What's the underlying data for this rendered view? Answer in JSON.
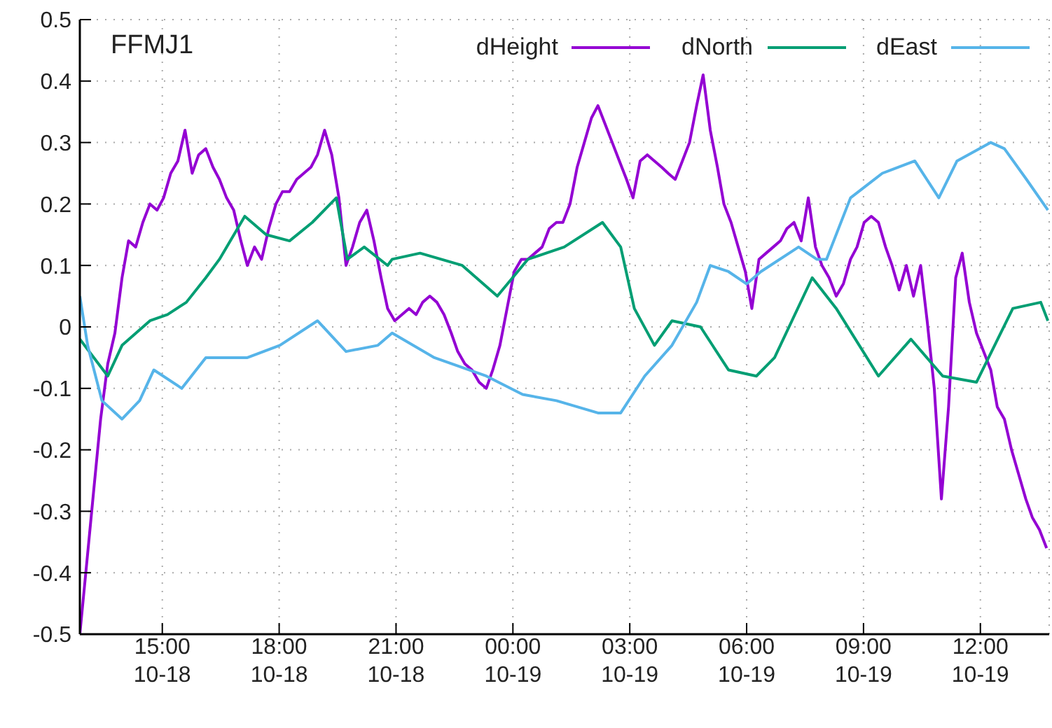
{
  "chart_data": {
    "type": "line",
    "title": "FFMJ1",
    "legend": "top right",
    "grid": true,
    "line_style": "solid",
    "marker": "none",
    "xlim": [
      "--10-18T12:53",
      "--10-19T13:46"
    ],
    "xticks": [
      {
        "value": "--10-18T15:00",
        "label": "15:00\n10-18"
      },
      {
        "value": "--10-18T18:00",
        "label": "18:00\n10-18"
      },
      {
        "value": "--10-18T21:00",
        "label": "21:00\n10-18"
      },
      {
        "value": "--10-19T00:00",
        "label": "00:00\n10-19"
      },
      {
        "value": "--10-19T03:00",
        "label": "03:00\n10-19"
      },
      {
        "value": "--10-19T06:00",
        "label": "06:00\n10-19"
      },
      {
        "value": "--10-19T09:00",
        "label": "09:00\n10-19"
      },
      {
        "value": "--10-19T12:00",
        "label": "12:00\n10-19"
      }
    ],
    "ylim": [
      -0.5,
      0.5
    ],
    "yticks": [
      -0.5,
      -0.4,
      -0.3,
      -0.2,
      -0.1,
      0,
      0.1,
      0.2,
      0.3,
      0.4,
      0.5
    ],
    "x": [
      "--10-18T12:53",
      "--10-18T13:04",
      "--10-18T13:14",
      "--10-18T13:25",
      "--10-18T13:36",
      "--10-18T13:47",
      "--10-18T13:58",
      "--10-18T14:08",
      "--10-18T14:19",
      "--10-18T14:30",
      "--10-18T14:41",
      "--10-18T14:52",
      "--10-18T15:02",
      "--10-18T15:13",
      "--10-18T15:24",
      "--10-18T15:35",
      "--10-18T15:46",
      "--10-18T15:56",
      "--10-18T16:07",
      "--10-18T16:18",
      "--10-18T16:28",
      "--10-18T16:39",
      "--10-18T16:50",
      "--10-18T17:01",
      "--10-18T17:11",
      "--10-18T17:22",
      "--10-18T17:33",
      "--10-18T17:44",
      "--10-18T17:55",
      "--10-18T18:05",
      "--10-18T18:16",
      "--10-18T18:27",
      "--10-18T18:38",
      "--10-18T18:49",
      "--10-18T18:59",
      "--10-18T19:10",
      "--10-18T19:21",
      "--10-18T19:32",
      "--10-18T19:43",
      "--10-18T19:53",
      "--10-18T20:04",
      "--10-18T20:15",
      "--10-18T20:26",
      "--10-18T20:37",
      "--10-18T20:47",
      "--10-18T20:58",
      "--10-18T21:09",
      "--10-18T21:20",
      "--10-18T21:31",
      "--10-18T21:41",
      "--10-18T21:52",
      "--10-18T22:03",
      "--10-18T22:14",
      "--10-18T22:25",
      "--10-18T22:35",
      "--10-18T22:46",
      "--10-18T22:57",
      "--10-18T23:08",
      "--10-18T23:19",
      "--10-18T23:29",
      "--10-18T23:40",
      "--10-18T23:51",
      "--10-19T00:02",
      "--10-19T00:13",
      "--10-19T00:23",
      "--10-19T00:34",
      "--10-19T00:45",
      "--10-19T00:56",
      "--10-19T01:07",
      "--10-19T01:17",
      "--10-19T01:28",
      "--10-19T01:39",
      "--10-19T01:50",
      "--10-19T02:01",
      "--10-19T02:11",
      "--10-19T02:22",
      "--10-19T02:33",
      "--10-19T02:44",
      "--10-19T02:55",
      "--10-19T03:05",
      "--10-19T03:16",
      "--10-19T03:27",
      "--10-19T03:38",
      "--10-19T03:49",
      "--10-19T03:59",
      "--10-19T04:10",
      "--10-19T04:21",
      "--10-19T04:32",
      "--10-19T04:43",
      "--10-19T04:53",
      "--10-19T05:04",
      "--10-19T05:15",
      "--10-19T05:25",
      "--10-19T05:36",
      "--10-19T05:47",
      "--10-19T05:58",
      "--10-19T06:08",
      "--10-19T06:19",
      "--10-19T06:30",
      "--10-19T06:41",
      "--10-19T06:52",
      "--10-19T07:02",
      "--10-19T07:13",
      "--10-19T07:24",
      "--10-19T07:35",
      "--10-19T07:46",
      "--10-19T07:56",
      "--10-19T08:07",
      "--10-19T08:18",
      "--10-19T08:29",
      "--10-19T08:40",
      "--10-19T08:50",
      "--10-19T09:01",
      "--10-19T09:12",
      "--10-19T09:23",
      "--10-19T09:34",
      "--10-19T09:44",
      "--10-19T09:55",
      "--10-19T10:06",
      "--10-19T10:17",
      "--10-19T10:28",
      "--10-19T10:38",
      "--10-19T10:49",
      "--10-19T11:00",
      "--10-19T11:11",
      "--10-19T11:22",
      "--10-19T11:32",
      "--10-19T11:43",
      "--10-19T11:54",
      "--10-19T12:05",
      "--10-19T12:16",
      "--10-19T12:26",
      "--10-19T12:37",
      "--10-19T12:48",
      "--10-19T12:59",
      "--10-19T13:10",
      "--10-19T13:20",
      "--10-19T13:31",
      "--10-19T13:42"
    ],
    "series": [
      {
        "name": "dHeight",
        "color": "#9400d3",
        "values": [
          -0.5,
          -0.38,
          -0.27,
          -0.15,
          -0.06,
          -0.01,
          0.08,
          0.14,
          0.13,
          0.17,
          0.2,
          0.19,
          0.21,
          0.25,
          0.27,
          0.32,
          0.25,
          0.28,
          0.29,
          0.26,
          0.24,
          0.21,
          0.19,
          0.14,
          0.1,
          0.13,
          0.11,
          0.16,
          0.2,
          0.22,
          0.22,
          0.24,
          0.25,
          0.26,
          0.28,
          0.32,
          0.28,
          0.21,
          0.1,
          0.13,
          0.17,
          0.19,
          0.14,
          0.08,
          0.03,
          0.01,
          0.02,
          0.03,
          0.02,
          0.04,
          0.05,
          0.04,
          0.02,
          -0.01,
          -0.04,
          -0.06,
          -0.07,
          -0.09,
          -0.1,
          -0.07,
          -0.03,
          0.03,
          0.09,
          0.11,
          0.11,
          0.12,
          0.13,
          0.16,
          0.17,
          0.17,
          0.2,
          0.26,
          0.3,
          0.34,
          0.36,
          0.33,
          0.3,
          0.27,
          0.24,
          0.21,
          0.27,
          0.28,
          0.27,
          0.26,
          0.25,
          0.24,
          0.27,
          0.3,
          0.36,
          0.41,
          0.32,
          0.26,
          0.2,
          0.17,
          0.13,
          0.09,
          0.03,
          0.11,
          0.12,
          0.13,
          0.14,
          0.16,
          0.17,
          0.14,
          0.21,
          0.13,
          0.1,
          0.08,
          0.05,
          0.07,
          0.11,
          0.13,
          0.17,
          0.18,
          0.17,
          0.13,
          0.1,
          0.06,
          0.1,
          0.05,
          0.1,
          0.01,
          -0.1,
          -0.28,
          -0.13,
          0.08,
          0.12,
          0.04,
          -0.01,
          -0.04,
          -0.07,
          -0.13,
          -0.15,
          -0.2,
          -0.24,
          -0.28,
          -0.31,
          -0.33,
          -0.36
        ]
      },
      {
        "name": "dNorth",
        "color": "#009e73",
        "x": [
          "--10-18T12:53",
          "--10-18T13:36",
          "--10-18T13:58",
          "--10-18T14:41",
          "--10-18T15:08",
          "--10-18T15:37",
          "--10-18T16:07",
          "--10-18T16:28",
          "--10-18T17:07",
          "--10-18T17:40",
          "--10-18T18:16",
          "--10-18T18:51",
          "--10-18T19:28",
          "--10-18T19:45",
          "--10-18T20:11",
          "--10-18T20:47",
          "--10-18T20:54",
          "--10-18T21:37",
          "--10-18T22:42",
          "--10-18T23:36",
          "--10-19T00:23",
          "--10-19T01:19",
          "--10-19T02:18",
          "--10-19T02:46",
          "--10-19T03:07",
          "--10-19T03:38",
          "--10-19T04:05",
          "--10-19T04:49",
          "--10-19T05:32",
          "--10-19T06:15",
          "--10-19T06:43",
          "--10-19T07:41",
          "--10-19T08:18",
          "--10-19T09:23",
          "--10-19T10:13",
          "--10-19T11:02",
          "--10-19T11:54",
          "--10-19T12:50",
          "--10-19T13:33",
          "--10-19T13:44"
        ],
        "values": [
          -0.02,
          -0.08,
          -0.03,
          0.01,
          0.02,
          0.04,
          0.08,
          0.11,
          0.18,
          0.15,
          0.14,
          0.17,
          0.21,
          0.11,
          0.13,
          0.1,
          0.11,
          0.12,
          0.1,
          0.05,
          0.11,
          0.13,
          0.17,
          0.13,
          0.03,
          -0.03,
          0.01,
          0.0,
          -0.07,
          -0.08,
          -0.05,
          0.08,
          0.03,
          -0.08,
          -0.02,
          -0.08,
          -0.09,
          0.03,
          0.04,
          0.01
        ]
      },
      {
        "name": "dEast",
        "color": "#56b4e9",
        "x": [
          "--10-18T12:53",
          "--10-18T13:05",
          "--10-18T13:27",
          "--10-18T13:58",
          "--10-18T14:25",
          "--10-18T14:47",
          "--10-18T15:30",
          "--10-18T16:07",
          "--10-18T17:11",
          "--10-18T18:01",
          "--10-18T18:59",
          "--10-18T19:43",
          "--10-18T20:32",
          "--10-18T20:54",
          "--10-18T21:59",
          "--10-18T23:19",
          "--10-19T00:15",
          "--10-19T01:07",
          "--10-19T02:11",
          "--10-19T02:46",
          "--10-19T03:23",
          "--10-19T04:05",
          "--10-19T04:43",
          "--10-19T05:04",
          "--10-19T05:32",
          "--10-19T06:00",
          "--10-19T06:22",
          "--10-19T07:20",
          "--10-19T07:48",
          "--10-19T08:03",
          "--10-19T08:40",
          "--10-19T09:29",
          "--10-19T10:19",
          "--10-19T10:56",
          "--10-19T11:24",
          "--10-19T12:16",
          "--10-19T12:37",
          "--10-19T13:11",
          "--10-19T13:44"
        ],
        "values": [
          0.05,
          -0.03,
          -0.12,
          -0.15,
          -0.12,
          -0.07,
          -0.1,
          -0.05,
          -0.05,
          -0.03,
          0.01,
          -0.04,
          -0.03,
          -0.01,
          -0.05,
          -0.08,
          -0.11,
          -0.12,
          -0.14,
          -0.14,
          -0.08,
          -0.03,
          0.04,
          0.1,
          0.09,
          0.07,
          0.09,
          0.13,
          0.11,
          0.11,
          0.21,
          0.25,
          0.27,
          0.21,
          0.27,
          0.3,
          0.29,
          0.24,
          0.19
        ]
      }
    ]
  }
}
